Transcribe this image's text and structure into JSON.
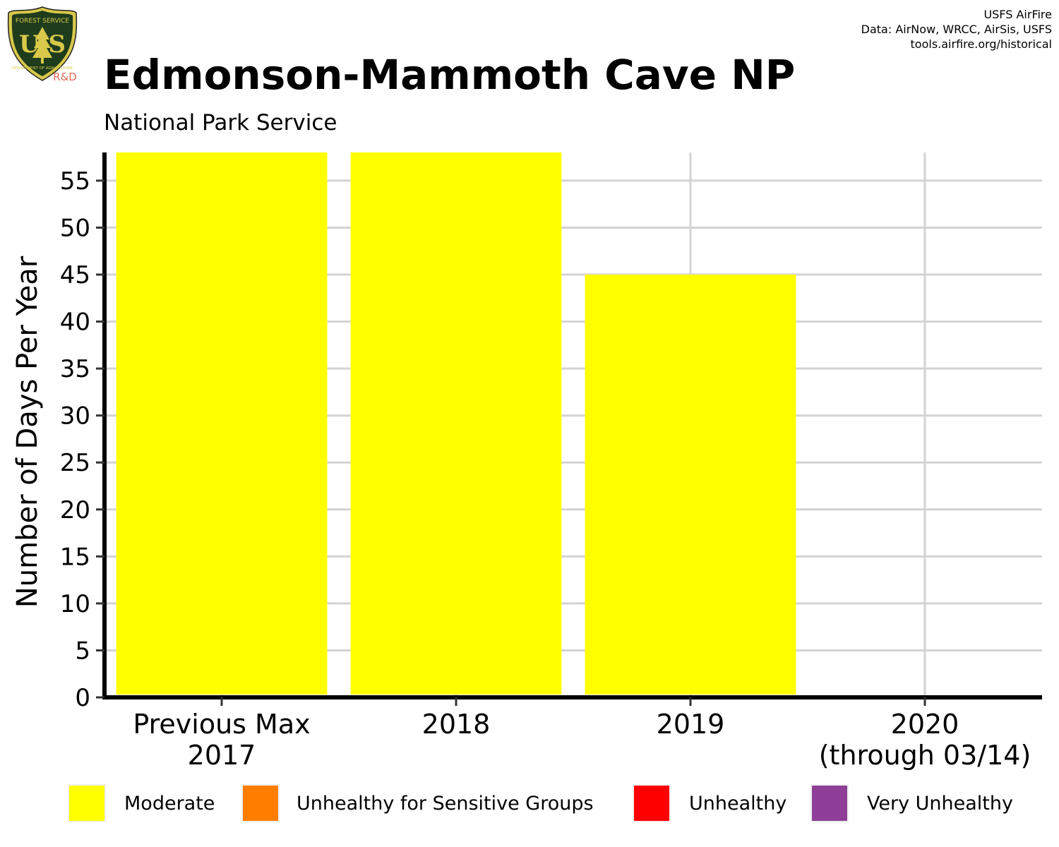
{
  "logo": {
    "icon": "usfs-shield-logo",
    "top_text": "FOREST SERVICE",
    "letters": "USA",
    "bottom_text": "DEPARTMENT OF AGRICULTURE",
    "badge": "R&D",
    "badge_color": "#e06b5a",
    "shield_color": "#1f3d1c",
    "trim_color": "#d9c84a"
  },
  "credits": {
    "line1": "USFS AirFire",
    "line2": "Data: AirNow, WRCC, AirSis, USFS",
    "line3": "tools.airfire.org/historical"
  },
  "header": {
    "title": "Edmonson-Mammoth Cave NP",
    "subtitle": "National Park Service"
  },
  "chart_data": {
    "type": "bar",
    "stacked": true,
    "categories": [
      "Previous Max\n2017",
      "2018",
      "2019",
      "2020\n(through 03/14)"
    ],
    "series": [
      {
        "name": "Moderate",
        "color": "#ffff00",
        "values": [
          58,
          58,
          45,
          0
        ]
      },
      {
        "name": "Unhealthy for Sensitive Groups",
        "color": "#ff7e00",
        "values": [
          0,
          0,
          0,
          0
        ]
      },
      {
        "name": "Unhealthy",
        "color": "#ff0000",
        "values": [
          0,
          0,
          0,
          0
        ]
      },
      {
        "name": "Very Unhealthy",
        "color": "#8f3f97",
        "values": [
          0,
          0,
          0,
          0
        ]
      }
    ],
    "ylabel": "Number of Days Per Year",
    "xlabel": "",
    "ylim": [
      0,
      58
    ],
    "yticks": [
      0,
      5,
      10,
      15,
      20,
      25,
      30,
      35,
      40,
      45,
      50,
      55
    ],
    "grid": true,
    "legend_position": "bottom"
  }
}
